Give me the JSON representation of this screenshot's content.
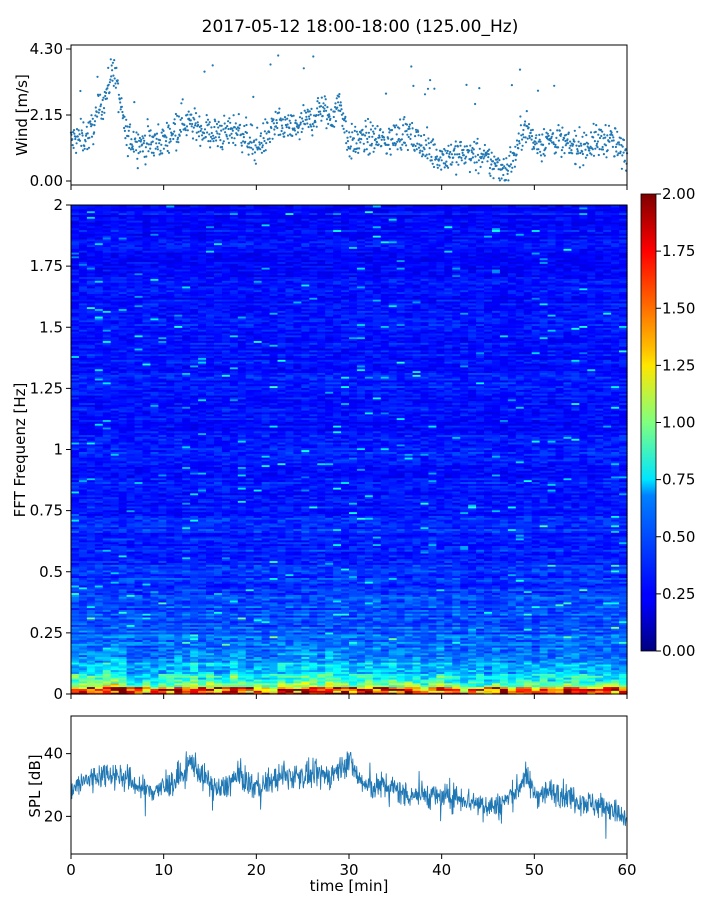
{
  "figure": {
    "title": "2017-05-12 18:00-18:00 (125.00_Hz)"
  },
  "colors": {
    "wind_points": "#1f77b4",
    "spl_line": "#1f77b4",
    "colormap": "jet"
  },
  "chart_data": [
    {
      "type": "scatter",
      "title": "",
      "xlabel": "",
      "ylabel": "Wind [m/s]",
      "xlim": [
        0,
        60
      ],
      "ylim": [
        0,
        4.3
      ],
      "yticks": [
        0.0,
        2.15,
        4.3
      ],
      "ytick_labels": [
        "0.00",
        "2.15",
        "4.30"
      ],
      "series": [
        {
          "x": [
            0,
            2,
            4,
            4.5,
            6,
            8,
            10,
            12,
            14,
            16,
            18,
            20,
            22,
            24,
            26,
            27,
            28,
            29,
            30,
            32,
            34,
            36,
            38,
            40,
            42,
            44,
            46,
            47,
            48,
            49,
            50,
            52,
            54,
            56,
            58,
            60
          ],
          "y": [
            1.3,
            1.5,
            3.0,
            3.8,
            1.4,
            1.2,
            1.3,
            2.0,
            1.7,
            1.5,
            1.7,
            1.1,
            1.8,
            1.7,
            2.0,
            2.4,
            2.0,
            2.6,
            1.2,
            1.4,
            1.3,
            1.6,
            1.1,
            0.8,
            0.9,
            0.8,
            0.5,
            0.4,
            0.9,
            1.9,
            1.2,
            1.4,
            1.1,
            1.2,
            1.4,
            0.8
          ]
        }
      ]
    },
    {
      "type": "heatmap",
      "title": "",
      "xlabel": "",
      "ylabel": "FFT Frequenz [Hz]",
      "xlim": [
        0,
        60
      ],
      "ylim": [
        0,
        2
      ],
      "yticks": [
        0,
        0.25,
        0.5,
        0.75,
        1,
        1.25,
        1.5,
        1.75,
        2
      ],
      "ytick_labels": [
        "0",
        "0.25",
        "0.5",
        "0.75",
        "1",
        "1.25",
        "1.5",
        "1.75",
        "2"
      ],
      "colorbar": {
        "range": [
          0.0,
          2.0
        ],
        "ticks": [
          0.0,
          0.25,
          0.5,
          0.75,
          1.0,
          1.25,
          1.5,
          1.75,
          2.0
        ],
        "tick_labels": [
          "0.00",
          "0.25",
          "0.50",
          "0.75",
          "1.00",
          "1.25",
          "1.50",
          "1.75",
          "2.00"
        ]
      },
      "freq_profile": {
        "freq": [
          0,
          0.02,
          0.05,
          0.1,
          0.15,
          0.25,
          0.5,
          1.0,
          2.0
        ],
        "mean_value": [
          1.8,
          1.3,
          0.8,
          0.6,
          0.5,
          0.42,
          0.33,
          0.28,
          0.26
        ]
      }
    },
    {
      "type": "line",
      "title": "",
      "xlabel": "time [min]",
      "ylabel": "SPL [dB]",
      "xlim": [
        0,
        60
      ],
      "ylim": [
        8,
        52
      ],
      "yticks": [
        20,
        40
      ],
      "ytick_labels": [
        "20",
        "40"
      ],
      "xticks": [
        0,
        10,
        20,
        30,
        40,
        50,
        60
      ],
      "xtick_labels": [
        "0",
        "10",
        "20",
        "30",
        "40",
        "50",
        "60"
      ],
      "series": [
        {
          "x": [
            0,
            2,
            4,
            6,
            8,
            10,
            12,
            13,
            14,
            16,
            18,
            20,
            22,
            24,
            26,
            28,
            30,
            31,
            32,
            34,
            36,
            38,
            40,
            42,
            44,
            46,
            48,
            49,
            50,
            52,
            54,
            56,
            58,
            60
          ],
          "y": [
            29,
            32,
            34,
            32,
            28,
            29,
            33,
            38,
            33,
            28,
            33,
            29,
            32,
            33,
            33,
            33,
            38,
            32,
            29,
            30,
            27,
            27,
            26,
            26,
            24,
            23,
            28,
            33,
            27,
            28,
            26,
            24,
            23,
            18
          ]
        }
      ]
    }
  ]
}
